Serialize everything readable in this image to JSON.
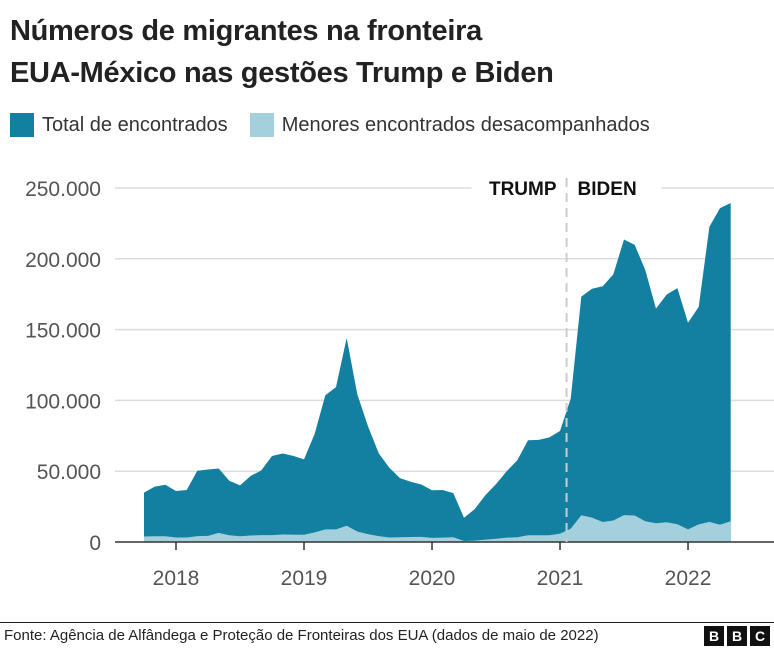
{
  "chart_data": {
    "type": "area",
    "title": "Números de migrantes na fronteira EUA-México nas gestões Trump e Biden",
    "title_lines": [
      "Números de migrantes na fronteira",
      "EUA-México nas gestões Trump e Biden"
    ],
    "x_start": "2017-10",
    "x_end": "2022-05",
    "x_ticks": [
      "2018",
      "2019",
      "2020",
      "2021",
      "2022"
    ],
    "y_ticks": [
      "0",
      "50.000",
      "100.000",
      "150.000",
      "200.000",
      "250.000"
    ],
    "ylim": [
      0,
      250000
    ],
    "grid": true,
    "legend_placement": "top",
    "annotations": {
      "divider_date": "2021-01-20",
      "left_label": "TRUMP",
      "right_label": "BIDEN"
    },
    "series": [
      {
        "name": "Total de encontrados",
        "color": "#1380a1",
        "values": [
          34900,
          39100,
          40500,
          36000,
          36700,
          50300,
          51200,
          51900,
          43200,
          40000,
          46700,
          50600,
          60700,
          62500,
          60800,
          58300,
          76500,
          103700,
          109400,
          144100,
          104300,
          81800,
          62700,
          52500,
          45100,
          42600,
          40600,
          36600,
          36700,
          34500,
          17100,
          23200,
          33000,
          40900,
          50000,
          57700,
          71900,
          72100,
          73900,
          78400,
          101100,
          173300,
          178800,
          180600,
          189000,
          213600,
          209800,
          192000,
          164800,
          174800,
          179300,
          154900,
          166000,
          222600,
          235800,
          239400
        ]
      },
      {
        "name": "Menores encontrados desacompanhados",
        "color": "#a3d0dc",
        "values": [
          3900,
          4000,
          4100,
          3200,
          3200,
          4200,
          4300,
          6400,
          4800,
          4000,
          4600,
          4900,
          4900,
          5300,
          5200,
          5100,
          6800,
          8900,
          8900,
          11500,
          7400,
          5600,
          4200,
          3200,
          3300,
          3500,
          3600,
          2900,
          3100,
          3300,
          700,
          1000,
          1700,
          2300,
          3100,
          3300,
          4800,
          4800,
          4800,
          5900,
          9300,
          18900,
          17200,
          14100,
          15200,
          19000,
          18700,
          14600,
          13300,
          13900,
          12600,
          8900,
          12400,
          14200,
          12200,
          14700
        ]
      }
    ]
  },
  "source": "Fonte: Agência de Alfândega e Proteção de Fronteiras dos EUA (dados de maio de 2022)",
  "logo": [
    "B",
    "B",
    "C"
  ]
}
